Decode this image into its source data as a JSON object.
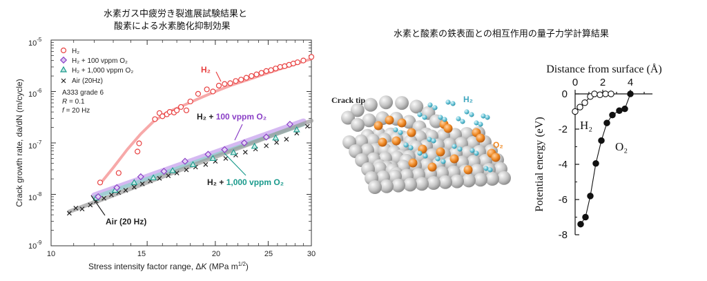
{
  "left_title": {
    "line1": "水素ガス中疲労き裂進展試験結果と",
    "line2": "酸素による水素脆化抑制効果"
  },
  "right_title": "水素と酸素の鉄表面との相互作用の量子力学計算結果",
  "colors": {
    "h2": "#e84040",
    "o2_100": "#8a3fc6",
    "o2_1000": "#1a9a8c",
    "air": "#222222",
    "fe_atom": "#bdbdbd",
    "o_atom": "#f08a24",
    "h_atom": "#63c2d6"
  },
  "chart_data": [
    {
      "type": "scatter",
      "title": "",
      "xlabel_prefix": "Stress intensity factor range, Δ",
      "xlabel_italic": "K",
      "xlabel_units": "(MPa m",
      "xlabel_sup": "1/2",
      "xlabel_close": ")",
      "ylabel": "Crack growth rate, da/dN (m/cycle)",
      "xscale": "log",
      "yscale": "log",
      "xlim": [
        10,
        30
      ],
      "ylim": [
        1e-09,
        1e-05
      ],
      "x_ticks": [
        10,
        15,
        20,
        25,
        30
      ],
      "x_tick_labels": [
        "10",
        "15",
        "20",
        "25",
        "30"
      ],
      "y_ticks": [
        1e-09,
        1e-08,
        1e-07,
        1e-06,
        1e-05
      ],
      "y_tick_base": "10",
      "y_tick_exps": [
        "-9",
        "-8",
        "-7",
        "-6",
        "-5"
      ],
      "legend": [
        "H₂",
        "H₂ + 100 vppm O₂",
        "H₂ + 1,000 vppm O₂",
        "Air (20Hz)"
      ],
      "legend_placement": "top-left",
      "conditions": {
        "material": "A333 grade 6",
        "r_label": "R",
        "r_value": "= 0.1",
        "f_label": "f",
        "f_value": "= 20 Hz"
      },
      "annotations": {
        "h2": "H₂",
        "o2_100_prefix": "H₂ + ",
        "o2_100_value": "100 vppm O₂",
        "o2_1000_prefix": "H₂ + ",
        "o2_1000_value": "1,000 vppm O₂",
        "air": "Air (20 Hz)"
      },
      "series": [
        {
          "name": "H₂",
          "marker": "circle",
          "x": [
            12.3,
            13.3,
            14.4,
            14.5,
            15.5,
            15.8,
            16.0,
            16.3,
            16.5,
            16.8,
            17.0,
            17.3,
            17.7,
            18.0,
            18.6,
            19.3,
            19.8,
            20.3,
            20.8,
            21.3,
            21.8,
            22.3,
            22.8,
            23.3,
            23.8,
            24.3,
            24.8,
            25.3,
            25.8,
            26.3,
            26.8,
            27.3,
            27.8,
            28.3,
            29.0,
            30.0
          ],
          "y": [
            1.7e-08,
            2.6e-08,
            6.8e-08,
            9.8e-08,
            2.9e-07,
            3.8e-07,
            3.3e-07,
            3.6e-07,
            4e-07,
            3.9e-07,
            4.3e-07,
            5e-07,
            4.3e-07,
            6.4e-07,
            9e-07,
            1.1e-06,
            1e-06,
            1.3e-06,
            1.4e-06,
            1.45e-06,
            1.6e-06,
            1.7e-06,
            1.85e-06,
            2e-06,
            2.15e-06,
            2.3e-06,
            2.5e-06,
            2.6e-06,
            2.8e-06,
            3e-06,
            3.1e-06,
            3.3e-06,
            3.5e-06,
            3.7e-06,
            4e-06,
            4.7e-06
          ]
        },
        {
          "name": "H₂ + 100 vppm O₂",
          "marker": "diamond",
          "x": [
            12.2,
            13.2,
            14.6,
            16.1,
            17.6,
            19.4,
            20.8,
            22.6,
            24.8,
            27.4
          ],
          "y": [
            9e-09,
            1.35e-08,
            2.2e-08,
            2.8e-08,
            4.4e-08,
            6e-08,
            7.4e-08,
            1e-07,
            1.3e-07,
            2.3e-07
          ]
        },
        {
          "name": "H₂ + 1,000 vppm O₂",
          "marker": "triangle",
          "x": [
            12.1,
            13.1,
            14.2,
            15.4,
            16.7,
            18.2,
            19.8,
            21.6,
            23.6,
            25.8,
            28.2
          ],
          "y": [
            8.5e-09,
            1.2e-08,
            1.7e-08,
            2.1e-08,
            2.9e-08,
            3.8e-08,
            5e-08,
            6.5e-08,
            8.6e-08,
            1.25e-07,
            1.8e-07
          ]
        },
        {
          "name": "Air (20Hz)",
          "marker": "x",
          "x": [
            10.8,
            11.1,
            11.4,
            11.8,
            12.1,
            12.5,
            12.9,
            13.3,
            13.7,
            14.2,
            14.7,
            15.2,
            15.8,
            16.4,
            17.0,
            17.7,
            18.4,
            19.2,
            20.0,
            20.9,
            21.8,
            22.7,
            23.7,
            24.8,
            25.9,
            27.0,
            28.2,
            29.5
          ],
          "y": [
            4.3e-09,
            5.4e-09,
            5.2e-09,
            6.2e-09,
            7.4e-09,
            8.4e-09,
            9.8e-09,
            1.08e-08,
            1.2e-08,
            1.38e-08,
            1.6e-08,
            1.82e-08,
            2.05e-08,
            2.3e-08,
            2.6e-08,
            3e-08,
            3.4e-08,
            3.8e-08,
            4.4e-08,
            5e-08,
            5.8e-08,
            6.6e-08,
            7.6e-08,
            8.8e-08,
            1.02e-07,
            1.18e-07,
            1.55e-07,
            2.1e-07
          ]
        }
      ],
      "fits": [
        {
          "name": "H₂ trend",
          "x": [
            12.3,
            13.0,
            13.8,
            14.6,
            15.4,
            16.3,
            17.3,
            18.5,
            20.0,
            21.5,
            23.0,
            25.0,
            27.0,
            30.0
          ],
          "y": [
            1.6e-08,
            3.3e-08,
            7.5e-08,
            1.5e-07,
            2.6e-07,
            3.9e-07,
            5.1e-07,
            7e-07,
            1e-06,
            1.35e-06,
            1.7e-06,
            2.3e-06,
            3e-06,
            4.3e-06
          ]
        },
        {
          "name": "H₂ + 100 vppm O₂ trend",
          "x": [
            12.0,
            29.0
          ],
          "y": [
            9.5e-09,
            2.6e-07
          ]
        },
        {
          "name": "H₂ + 1,000 vppm O₂ trend",
          "x": [
            12.0,
            29.0
          ],
          "y": [
            8.7e-09,
            2.3e-07
          ]
        },
        {
          "name": "Air trend",
          "x": [
            10.8,
            30.0
          ],
          "y": [
            4.6e-09,
            2.7e-07
          ]
        }
      ]
    },
    {
      "type": "line",
      "title": "Distance from surface (Å)",
      "xlabel": "Distance from surface (Å)",
      "ylabel": "Potential energy (eV)",
      "xlim": [
        0,
        5
      ],
      "ylim": [
        -8,
        0
      ],
      "x_ticks": [
        0,
        2,
        4
      ],
      "x_tick_labels": [
        "0",
        "2",
        "4"
      ],
      "y_ticks": [
        0,
        -2,
        -4,
        -6,
        -8
      ],
      "y_tick_labels": [
        "0",
        "-2",
        "-4",
        "-6",
        "-8"
      ],
      "series": [
        {
          "name": "H₂",
          "label": "H₂",
          "marker": "open-circle",
          "x": [
            0.0,
            0.35,
            0.7,
            1.1,
            1.4,
            1.8,
            2.2,
            2.6
          ],
          "y": [
            -1.0,
            -0.75,
            -0.5,
            -0.15,
            0.0,
            -0.05,
            0.0,
            0.0
          ]
        },
        {
          "name": "O₂",
          "label": "O₂",
          "marker": "filled-circle",
          "x": [
            0.4,
            0.75,
            1.1,
            1.5,
            1.9,
            2.3,
            2.7,
            3.2,
            3.6,
            4.0
          ],
          "y": [
            -7.4,
            -7.0,
            -5.8,
            -3.95,
            -2.65,
            -1.65,
            -1.2,
            -0.95,
            -0.85,
            0.0
          ]
        }
      ]
    }
  ],
  "illustration": {
    "crack_tip_label": "Crack tip",
    "h2_label": "H₂",
    "o2_label": "O₂"
  }
}
